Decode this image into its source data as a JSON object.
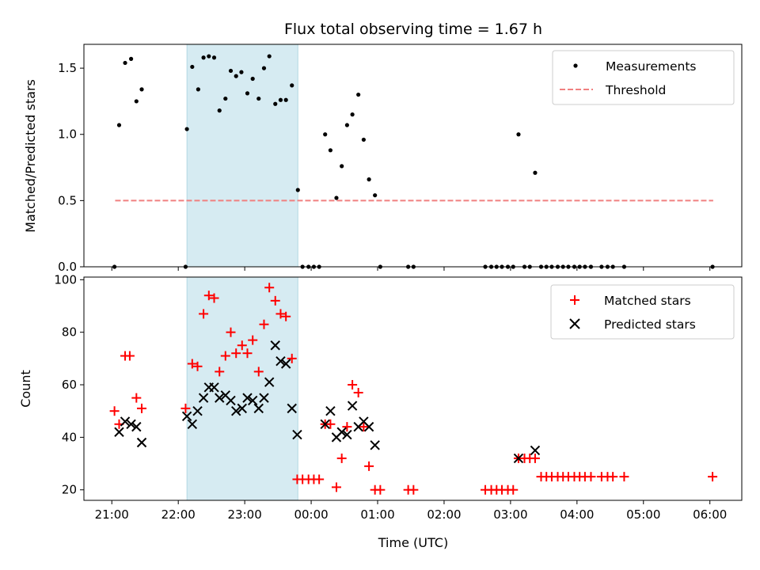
{
  "chart_data": {
    "title": "Flux total observing time = 1.67 h",
    "xlabel": "Time (UTC)",
    "x_unit": "hours relative to 21:00 UTC",
    "xlim": [
      -0.42,
      9.48
    ],
    "x_ticks": [
      0,
      1,
      2,
      3,
      4,
      5,
      6,
      7,
      8,
      9
    ],
    "x_tick_labels": [
      "21:00",
      "22:00",
      "23:00",
      "00:00",
      "01:00",
      "02:00",
      "03:00",
      "04:00",
      "05:00",
      "06:00"
    ],
    "shaded_span": {
      "x0": 1.13,
      "x1": 2.8,
      "color": "#add8e6"
    },
    "panels": [
      {
        "type": "scatter",
        "ylabel": "Matched/Predicted stars",
        "ylim": [
          0,
          1.68
        ],
        "y_ticks": [
          0.0,
          0.5,
          1.0,
          1.5
        ],
        "y_tick_labels": [
          "0.0",
          "0.5",
          "1.0",
          "1.5"
        ],
        "threshold": {
          "name": "Threshold",
          "value": 0.5,
          "x_range": [
            0.05,
            9.05
          ],
          "color": "#f08080"
        },
        "series": [
          {
            "name": "Measurements",
            "marker": "dot",
            "color": "#000000",
            "x": [
              0.04,
              0.11,
              0.2,
              0.29,
              0.37,
              0.45,
              1.11,
              1.13,
              1.21,
              1.3,
              1.38,
              1.46,
              1.54,
              1.62,
              1.71,
              1.79,
              1.87,
              1.95,
              2.04,
              2.12,
              2.21,
              2.29,
              2.37,
              2.46,
              2.54,
              2.62,
              2.71,
              2.8,
              2.87,
              2.96,
              3.04,
              3.12,
              3.21,
              3.29,
              3.38,
              3.46,
              3.54,
              3.62,
              3.71,
              3.79,
              3.87,
              3.96,
              4.04,
              4.46,
              4.54,
              5.62,
              5.71,
              5.79,
              5.87,
              5.96,
              6.04,
              6.12,
              6.21,
              6.29,
              6.37,
              6.46,
              6.54,
              6.62,
              6.71,
              6.79,
              6.87,
              6.96,
              7.04,
              7.12,
              7.21,
              7.37,
              7.46,
              7.54,
              7.71,
              9.04
            ],
            "y": [
              0.0,
              1.07,
              1.54,
              1.57,
              1.25,
              1.34,
              0.0,
              1.04,
              1.51,
              1.34,
              1.58,
              1.59,
              1.58,
              1.18,
              1.27,
              1.48,
              1.44,
              1.47,
              1.31,
              1.42,
              1.27,
              1.5,
              1.59,
              1.23,
              1.26,
              1.26,
              1.37,
              0.58,
              0.0,
              0.0,
              0.0,
              0.0,
              1.0,
              0.88,
              0.52,
              0.76,
              1.07,
              1.15,
              1.3,
              0.96,
              0.66,
              0.54,
              0.0,
              0.0,
              0.0,
              0.0,
              0.0,
              0.0,
              0.0,
              0.0,
              0.0,
              1.0,
              0.0,
              0.0,
              0.71,
              0.0,
              0.0,
              0.0,
              0.0,
              0.0,
              0.0,
              0.0,
              0.0,
              0.0,
              0.0,
              0.0,
              0.0,
              0.0,
              0.0,
              0.0
            ]
          }
        ],
        "legend": {
          "location": "upper right",
          "entries": [
            "Measurements",
            "Threshold"
          ]
        }
      },
      {
        "type": "scatter",
        "ylabel": "Count",
        "ylim": [
          16,
          101
        ],
        "y_ticks": [
          20,
          40,
          60,
          80,
          100
        ],
        "y_tick_labels": [
          "20",
          "40",
          "60",
          "80",
          "100"
        ],
        "series": [
          {
            "name": "Matched stars",
            "marker": "plus",
            "color": "#ff0000",
            "x": [
              0.04,
              0.11,
              0.2,
              0.27,
              0.37,
              0.45,
              1.11,
              1.21,
              1.29,
              1.38,
              1.46,
              1.54,
              1.62,
              1.71,
              1.79,
              1.87,
              1.96,
              2.04,
              2.12,
              2.21,
              2.29,
              2.37,
              2.46,
              2.54,
              2.62,
              2.71,
              2.79,
              2.87,
              2.96,
              3.04,
              3.12,
              3.21,
              3.29,
              3.38,
              3.46,
              3.54,
              3.62,
              3.71,
              3.79,
              3.87,
              3.96,
              4.04,
              4.46,
              4.54,
              5.62,
              5.71,
              5.79,
              5.87,
              5.96,
              6.04,
              6.12,
              6.21,
              6.29,
              6.37,
              6.46,
              6.54,
              6.62,
              6.71,
              6.79,
              6.87,
              6.96,
              7.04,
              7.12,
              7.21,
              7.37,
              7.46,
              7.54,
              7.71,
              9.04
            ],
            "y": [
              50,
              45,
              71,
              71,
              55,
              51,
              51,
              68,
              67,
              87,
              94,
              93,
              65,
              71,
              80,
              72,
              75,
              72,
              77,
              65,
              83,
              97,
              92,
              87,
              86,
              70,
              24,
              24,
              24,
              24,
              24,
              45,
              45,
              21,
              32,
              44,
              60,
              57,
              44,
              29,
              20,
              20,
              20,
              20,
              20,
              20,
              20,
              20,
              20,
              20,
              32,
              32,
              32,
              32,
              25,
              25,
              25,
              25,
              25,
              25,
              25,
              25,
              25,
              25,
              25,
              25,
              25,
              25,
              25
            ]
          },
          {
            "name": "Predicted stars",
            "marker": "x",
            "color": "#000000",
            "x": [
              0.11,
              0.2,
              0.29,
              0.37,
              0.45,
              1.13,
              1.21,
              1.29,
              1.38,
              1.46,
              1.54,
              1.62,
              1.71,
              1.79,
              1.87,
              1.96,
              2.04,
              2.12,
              2.21,
              2.29,
              2.37,
              2.46,
              2.54,
              2.62,
              2.71,
              2.79,
              3.21,
              3.29,
              3.38,
              3.46,
              3.54,
              3.62,
              3.71,
              3.79,
              3.87,
              3.96,
              6.12,
              6.37
            ],
            "y": [
              42,
              46,
              45,
              44,
              38,
              48,
              45,
              50,
              55,
              59,
              59,
              55,
              56,
              54,
              50,
              51,
              55,
              54,
              51,
              55,
              61,
              75,
              69,
              68,
              51,
              41,
              45,
              50,
              40,
              42,
              41,
              52,
              44,
              46,
              44,
              37,
              32,
              35
            ]
          }
        ],
        "legend": {
          "location": "upper right",
          "entries": [
            "Matched stars",
            "Predicted stars"
          ]
        }
      }
    ]
  }
}
